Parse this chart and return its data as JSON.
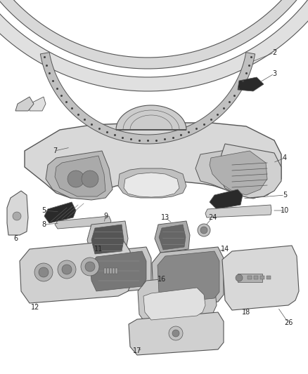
{
  "background_color": "#ffffff",
  "line_color": "#555555",
  "dark_color": "#333333",
  "light_fill": "#e8e8e8",
  "mid_fill": "#cccccc",
  "dark_fill": "#444444",
  "figsize": [
    4.38,
    5.33
  ],
  "dpi": 100,
  "text_color": "#222222",
  "label_fontsize": 7.0
}
